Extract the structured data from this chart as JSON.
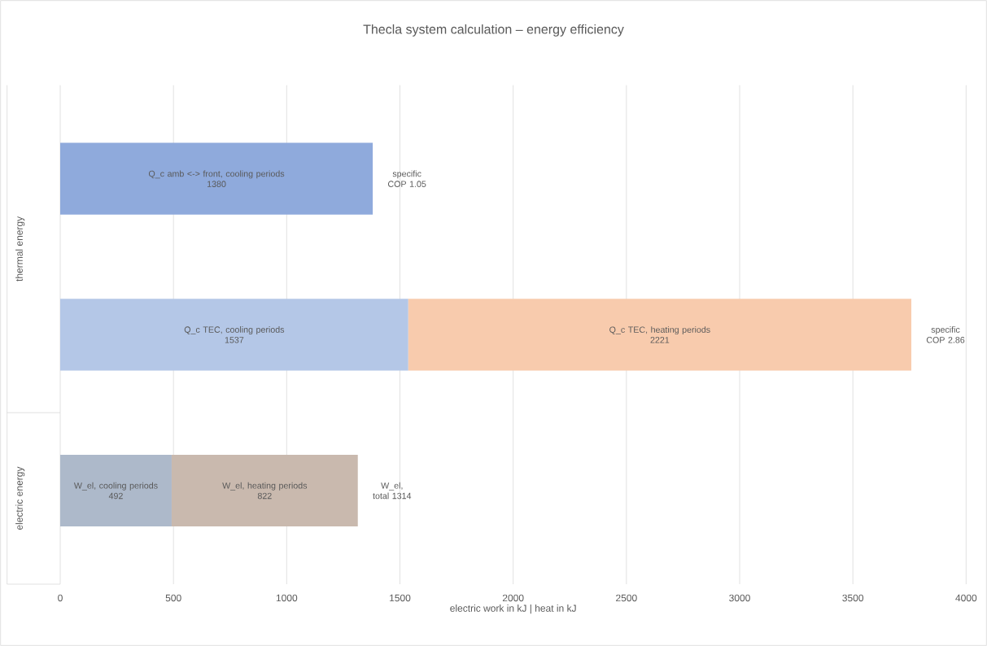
{
  "chart_data": {
    "type": "bar",
    "orientation": "horizontal",
    "stacked": true,
    "title": "Thecla system calculation – energy efficiency",
    "xlabel": "electric work in kJ | heat in kJ",
    "categories": [
      null,
      null,
      null
    ],
    "series": [
      {
        "name": "Q_c amb <-> front, cooling periods",
        "color": "#8faadc",
        "values": [
          1380,
          null,
          null
        ]
      },
      {
        "name": "Q_c TEC, cooling periods",
        "color": "#b4c7e7",
        "values": [
          null,
          1537,
          null
        ]
      },
      {
        "name": "W_el, cooling periods",
        "color": "#adb9ca",
        "values": [
          null,
          null,
          492
        ]
      },
      {
        "name": "Q_c TEC, heating periods",
        "color": "#f8cbad",
        "values": [
          null,
          2221,
          null
        ]
      },
      {
        "name": "W_el, heating periods",
        "color": "#c9b9ae",
        "values": [
          null,
          null,
          822
        ]
      }
    ],
    "data_labels": true,
    "xlim": [
      0,
      4000
    ],
    "xticks": [
      0,
      500,
      1000,
      1500,
      2000,
      2500,
      3000,
      3500,
      4000
    ],
    "grid": "x",
    "tick_labels": "x",
    "annotations": [
      "thermal energy",
      "electric energy",
      {
        "text": "specific COP 1.05",
        "x": 1380
      },
      {
        "text": "specific COP 2.86",
        "x": 3758
      },
      {
        "text": "W_el, total 1314",
        "x": 1314
      }
    ]
  }
}
